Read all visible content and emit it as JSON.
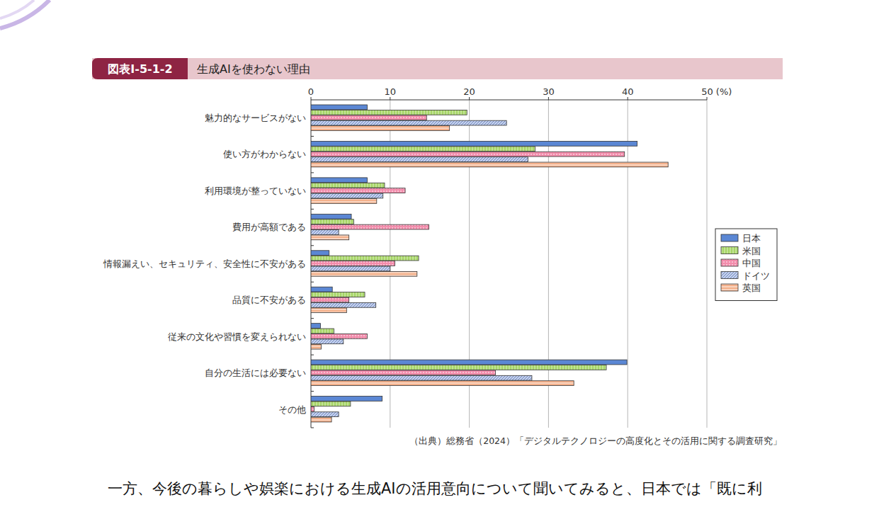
{
  "chart_data": {
    "type": "bar",
    "orientation": "horizontal",
    "figure_number": "図表Ⅰ-5-1-2",
    "title": "生成AIを使わない理由",
    "source": "（出典）総務省（2024）「デジタルテクノロジーの高度化とその活用に関する調査研究」",
    "categories": [
      "魅力的なサービスがない",
      "使い方がわからない",
      "利用環境が整っていない",
      "費用が高額である",
      "情報漏えい、セキュリティ、安全性に不安がある",
      "品質に不安がある",
      "従来の文化や習慣を変えられない",
      "自分の生活には必要ない",
      "その他"
    ],
    "series": [
      {
        "name": "日本",
        "color": "#5b87d4",
        "values": [
          7.1,
          41.2,
          7.1,
          5.1,
          2.3,
          2.7,
          1.2,
          39.9,
          9.0
        ]
      },
      {
        "name": "米国",
        "color": "#9fd25a",
        "values": [
          19.7,
          28.3,
          9.3,
          5.4,
          13.6,
          6.8,
          2.9,
          37.3,
          5.0
        ]
      },
      {
        "name": "中国",
        "color": "#f28cab",
        "values": [
          14.6,
          39.6,
          11.9,
          14.9,
          10.6,
          4.8,
          7.1,
          23.3,
          0.4
        ]
      },
      {
        "name": "ドイツ",
        "color": "#a9bde8",
        "values": [
          24.7,
          27.4,
          9.1,
          3.5,
          10.0,
          8.2,
          4.1,
          27.9,
          3.5
        ]
      },
      {
        "name": "英国",
        "color": "#f4b08a",
        "values": [
          17.5,
          45.1,
          8.3,
          4.8,
          13.4,
          4.5,
          1.3,
          33.2,
          2.6
        ]
      }
    ],
    "xlim": [
      0,
      50
    ],
    "xticks": [
      0,
      10,
      20,
      30,
      40,
      {
        "value": 50,
        "label": "50 (%)"
      }
    ],
    "grid": true,
    "legend": "right"
  },
  "body_text": "一方、今後の暮らしや娯楽における生成AIの活用意向について聞いてみると、日本では「既に利"
}
